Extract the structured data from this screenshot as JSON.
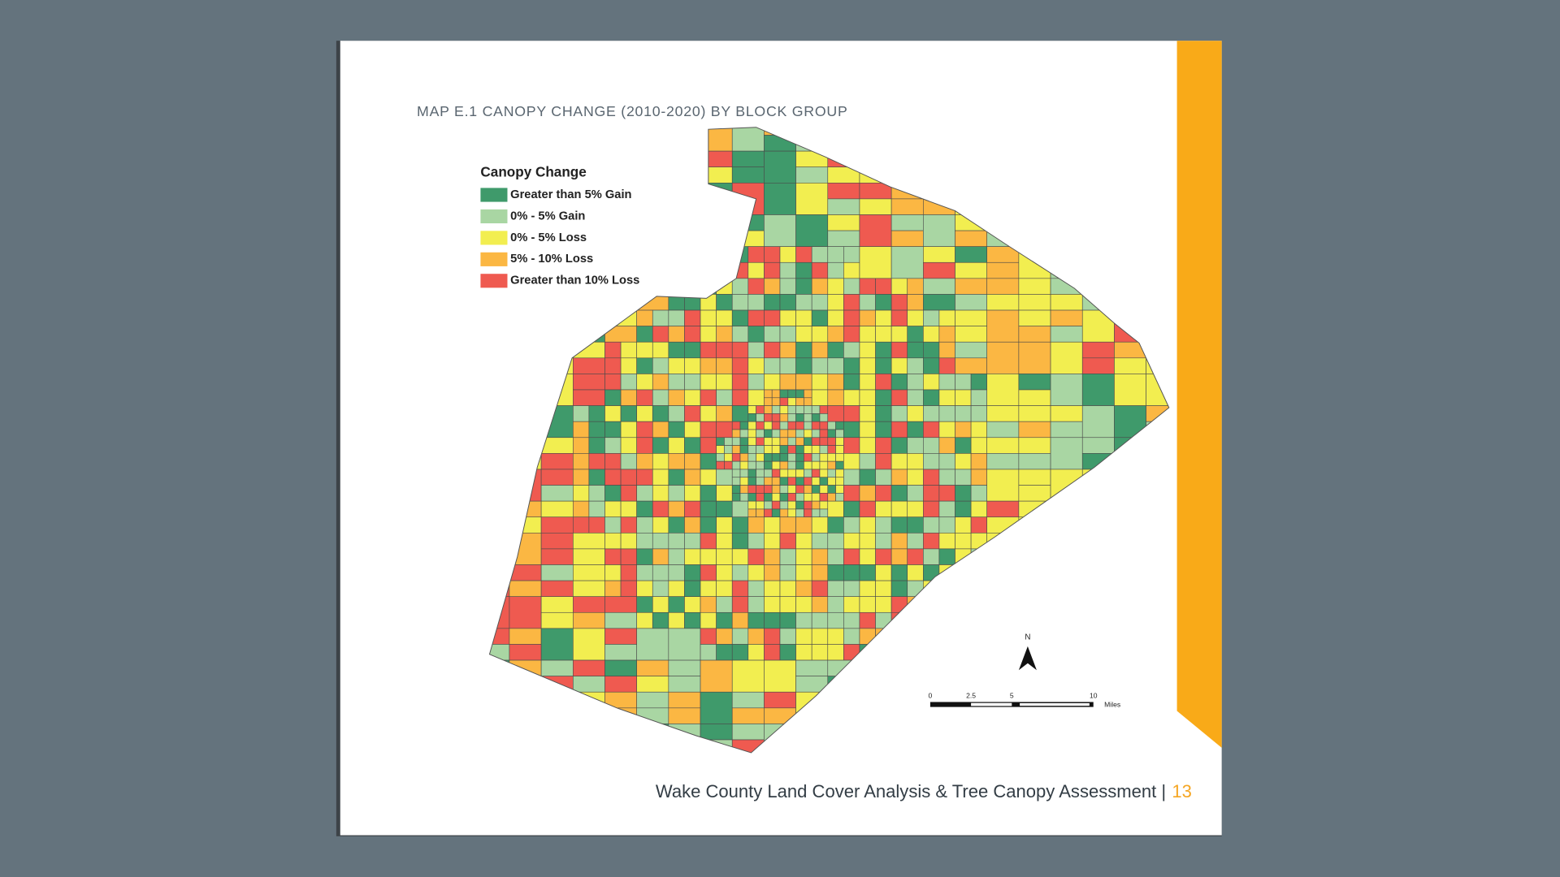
{
  "header": {
    "title": "MAP E.1 CANOPY CHANGE (2010-2020) BY BLOCK GROUP"
  },
  "legend": {
    "title": "Canopy Change",
    "items": [
      {
        "label": "Greater than 5% Gain",
        "color": "#3f9a6b"
      },
      {
        "label": "0% - 5% Gain",
        "color": "#a9d6a3"
      },
      {
        "label": "0% - 5% Loss",
        "color": "#f2ee50"
      },
      {
        "label": "5% - 10% Loss",
        "color": "#fbb743"
      },
      {
        "label": "Greater than 10% Loss",
        "color": "#ef5a50"
      }
    ]
  },
  "north_arrow": {
    "label": "N"
  },
  "scale_bar": {
    "labels": [
      "0",
      "2.5",
      "5",
      "10"
    ],
    "unit": "Miles"
  },
  "footer": {
    "text": "Wake County Land Cover Analysis & Tree Canopy Assessment |",
    "page_number": "13"
  }
}
